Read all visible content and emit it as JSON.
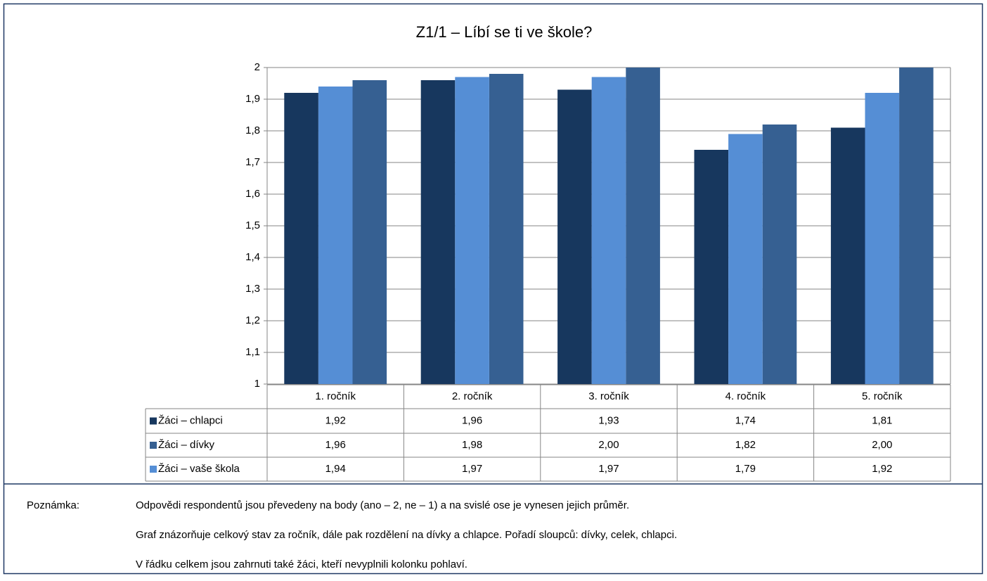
{
  "chart_data": {
    "type": "bar",
    "title": "Z1/1 – Líbí se ti ve škole?",
    "categories": [
      "1. ročník",
      "2. ročník",
      "3. ročník",
      "4. ročník",
      "5. ročník"
    ],
    "series": [
      {
        "name": "Žáci – chlapci",
        "color": "#17375e",
        "values": [
          1.92,
          1.96,
          1.93,
          1.74,
          1.81
        ],
        "value_labels": [
          "1,92",
          "1,96",
          "1,93",
          "1,74",
          "1,81"
        ]
      },
      {
        "name": "Žáci – dívky",
        "color": "#366092",
        "values": [
          1.96,
          1.98,
          2.0,
          1.82,
          2.0
        ],
        "value_labels": [
          "1,96",
          "1,98",
          "2,00",
          "1,82",
          "2,00"
        ]
      },
      {
        "name": "Žáci – vaše škola",
        "color": "#558ed5",
        "values": [
          1.94,
          1.97,
          1.97,
          1.79,
          1.92
        ],
        "value_labels": [
          "1,94",
          "1,97",
          "1,97",
          "1,79",
          "1,92"
        ]
      }
    ],
    "ylim": [
      1,
      2
    ],
    "yticks": [
      1,
      {
        "value": 1.1,
        "label": "1,1"
      },
      {
        "value": 1.2,
        "label": "1,2"
      },
      {
        "value": 1.3,
        "label": "1,3"
      },
      {
        "value": 1.4,
        "label": "1,4"
      },
      {
        "value": 1.5,
        "label": "1,5"
      },
      {
        "value": 1.6,
        "label": "1,6"
      },
      {
        "value": 1.7,
        "label": "1,7"
      },
      {
        "value": 1.8,
        "label": "1,8"
      },
      {
        "value": 1.9,
        "label": "1,9"
      },
      2
    ],
    "grid": true
  },
  "note": {
    "label": "Poznámka:",
    "lines": [
      "Odpovědi respondentů jsou převedeny na body (ano – 2, ne – 1) a na svislé ose je vynesen jejich průměr.",
      "Graf znázorňuje celkový stav za ročník, dále pak rozdělení na dívky a chlapce. Pořadí sloupců: dívky, celek, chlapci.",
      "V řádku celkem jsou zahrnuti také žáci, kteří nevyplnili kolonku pohlaví."
    ]
  }
}
